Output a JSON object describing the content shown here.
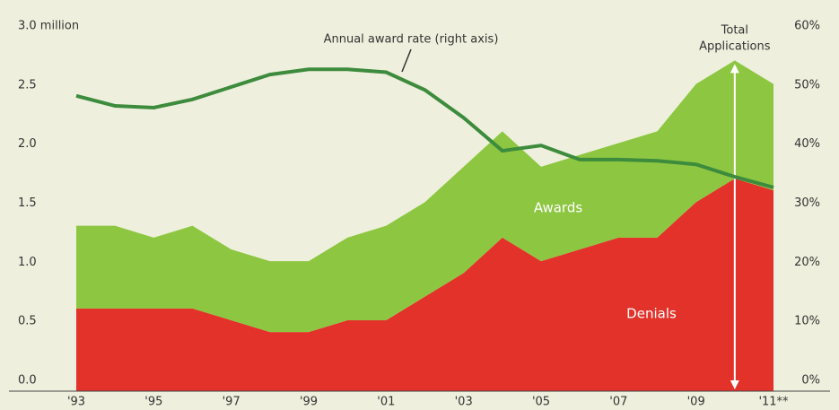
{
  "chart_data": {
    "type": "stacked-area-line",
    "categories": [
      "'93",
      null,
      "'95",
      null,
      "'97",
      null,
      "'99",
      null,
      "'01",
      null,
      "'03",
      null,
      "'05",
      null,
      "'07",
      null,
      "'09",
      null,
      "'11**"
    ],
    "series": [
      {
        "name": "Denials",
        "color": "#e2322a",
        "values": [
          0.7,
          0.7,
          0.7,
          0.7,
          0.6,
          0.5,
          0.5,
          0.6,
          0.6,
          0.8,
          1.0,
          1.3,
          1.1,
          1.2,
          1.3,
          1.3,
          1.6,
          1.8,
          1.7
        ]
      },
      {
        "name": "Awards",
        "color": "#8dc641",
        "values": [
          0.7,
          0.7,
          0.6,
          0.7,
          0.6,
          0.6,
          0.6,
          0.7,
          0.8,
          0.8,
          0.9,
          0.9,
          0.8,
          0.8,
          0.8,
          0.9,
          1.0,
          1.0,
          0.9
        ]
      },
      {
        "name": "Annual award rate (right axis)",
        "color": "#3d8b3d",
        "axis": "y2",
        "values": [
          50,
          48.3,
          48,
          49.4,
          51.5,
          53.6,
          54.5,
          54.5,
          54,
          51,
          46.3,
          40.7,
          41.6,
          39.2,
          39.2,
          39,
          38.4,
          36.3,
          34.5
        ]
      }
    ],
    "annotations": [
      "Total",
      "Applications"
    ],
    "ylim": [
      0,
      3
    ],
    "yticks": [
      {
        "value": 0,
        "label": "0.0"
      },
      0.5,
      {
        "value": 1,
        "label": "1.0"
      },
      1.5,
      {
        "value": 2,
        "label": "2.0"
      },
      2.5,
      {
        "value": 3,
        "label": "3.0 million"
      }
    ],
    "y2lim": [
      0,
      60
    ],
    "y2ticks": [
      {
        "value": 0,
        "label": "0%"
      },
      {
        "value": 10,
        "label": "10%"
      },
      {
        "value": 20,
        "label": "20%"
      },
      {
        "value": 30,
        "label": "30%"
      },
      {
        "value": 40,
        "label": "40%"
      },
      {
        "value": 50,
        "label": "50%"
      },
      {
        "value": 60,
        "label": "60%"
      }
    ]
  }
}
